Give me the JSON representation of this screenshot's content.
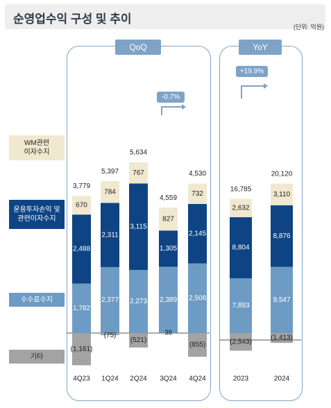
{
  "header": {
    "title": "순영업수익 구성 및 추이",
    "unit": "(단위: 억원)"
  },
  "groups": {
    "qoq_label": "QoQ",
    "yoy_label": "YoY"
  },
  "categories": [
    {
      "key": "wm",
      "label": "WM관련\n이자수지",
      "color": "#f1e8d0",
      "text_color": "#222222"
    },
    {
      "key": "invest",
      "label": "운용투자손익 및\n관련이자수지",
      "color": "#0e4483",
      "text_color": "#ffffff"
    },
    {
      "key": "fee",
      "label": "수수료수지",
      "color": "#6d9bc4",
      "text_color": "#ffffff"
    },
    {
      "key": "other",
      "label": "기타",
      "color": "#a3a3a3",
      "text_color": "#222222"
    }
  ],
  "annotations": {
    "qoq_change": "-0.7%",
    "yoy_change": "+19.9%"
  },
  "chart_data": {
    "type": "bar",
    "stacked": true,
    "title": "순영업수익 구성 및 추이",
    "unit": "(단위: 억원)",
    "categories": [
      "4Q23",
      "1Q24",
      "2Q24",
      "3Q24",
      "4Q24",
      "2023",
      "2024"
    ],
    "series": [
      {
        "name": "WM관련 이자수지",
        "values": [
          670,
          784,
          767,
          827,
          732,
          2632,
          3110
        ]
      },
      {
        "name": "운용투자손익 및 관련이자수지",
        "values": [
          2488,
          2311,
          3115,
          1305,
          2145,
          8804,
          8876
        ]
      },
      {
        "name": "수수료수지",
        "values": [
          1782,
          2377,
          2273,
          2389,
          2508,
          7893,
          9547
        ]
      },
      {
        "name": "기타",
        "values": [
          -1161,
          -75,
          -521,
          38,
          -855,
          -2543,
          -1413
        ]
      }
    ],
    "value_labels": {
      "WM관련 이자수지": [
        "670",
        "784",
        "767",
        "827",
        "732",
        "2,632",
        "3,110"
      ],
      "운용투자손익 및 관련이자수지": [
        "2,488",
        "2,311",
        "3,115",
        "1,305",
        "2,145",
        "8,804",
        "8,876"
      ],
      "수수료수지": [
        "1,782",
        "2,377",
        "2,273",
        "2,389",
        "2,508",
        "7,893",
        "9,547"
      ],
      "기타": [
        "(1,161)",
        "(75)",
        "(521)",
        "38",
        "(855)",
        "(2,543)",
        "(1,413)"
      ]
    },
    "totals": [
      3779,
      5397,
      5634,
      4559,
      4530,
      16785,
      20120
    ],
    "total_labels": [
      "3,779",
      "5,397",
      "5,634",
      "4,559",
      "4,530",
      "16,785",
      "20,120"
    ],
    "groups": [
      {
        "name": "QoQ",
        "categories": [
          "4Q23",
          "1Q24",
          "2Q24",
          "3Q24",
          "4Q24"
        ]
      },
      {
        "name": "YoY",
        "categories": [
          "2023",
          "2024"
        ]
      }
    ]
  }
}
